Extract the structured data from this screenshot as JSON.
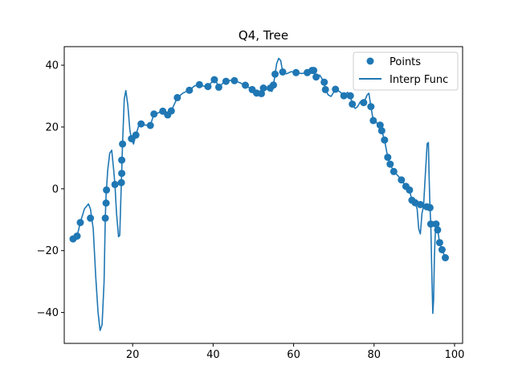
{
  "chart_data": {
    "type": "scatter",
    "title": "Q4, Tree",
    "xlabel": "",
    "ylabel": "",
    "xlim": [
      3,
      102
    ],
    "ylim": [
      -50,
      46
    ],
    "xticks": [
      20,
      40,
      60,
      80,
      100
    ],
    "yticks": [
      -40,
      -20,
      0,
      20,
      40
    ],
    "grid": false,
    "legend_position": "top-right",
    "colors": {
      "series": "#1f77b4",
      "axes": "#000000",
      "background": "#ffffff"
    },
    "series": [
      {
        "name": "Points",
        "kind": "scatter",
        "points": [
          [
            5.2,
            -16.2
          ],
          [
            6.2,
            -15.3
          ],
          [
            7.0,
            -10.9
          ],
          [
            9.5,
            -9.5
          ],
          [
            13.2,
            -9.5
          ],
          [
            13.4,
            -4.6
          ],
          [
            13.5,
            -0.4
          ],
          [
            15.6,
            1.4
          ],
          [
            17.2,
            2.0
          ],
          [
            17.3,
            5.0
          ],
          [
            17.3,
            9.3
          ],
          [
            17.5,
            14.5
          ],
          [
            19.7,
            16.2
          ],
          [
            20.8,
            17.4
          ],
          [
            22.1,
            21.0
          ],
          [
            24.4,
            20.5
          ],
          [
            25.3,
            24.2
          ],
          [
            27.5,
            25.1
          ],
          [
            28.7,
            23.9
          ],
          [
            29.6,
            25.2
          ],
          [
            31.1,
            29.5
          ],
          [
            34.1,
            31.9
          ],
          [
            36.6,
            33.7
          ],
          [
            38.7,
            33.1
          ],
          [
            40.3,
            35.3
          ],
          [
            41.4,
            32.9
          ],
          [
            43.2,
            34.8
          ],
          [
            45.3,
            35.0
          ],
          [
            48.0,
            33.5
          ],
          [
            49.7,
            32.1
          ],
          [
            50.8,
            31.0
          ],
          [
            52.0,
            30.8
          ],
          [
            52.5,
            32.6
          ],
          [
            54.2,
            32.6
          ],
          [
            55.0,
            33.6
          ],
          [
            55.4,
            37.1
          ],
          [
            57.3,
            37.8
          ],
          [
            60.6,
            37.6
          ],
          [
            63.4,
            37.6
          ],
          [
            64.6,
            38.3
          ],
          [
            65.0,
            38.3
          ],
          [
            65.6,
            36.2
          ],
          [
            67.6,
            34.5
          ],
          [
            67.9,
            32.1
          ],
          [
            70.4,
            32.2
          ],
          [
            72.5,
            30.1
          ],
          [
            74.1,
            30.1
          ],
          [
            74.6,
            27.4
          ],
          [
            77.4,
            27.9
          ],
          [
            79.2,
            26.6
          ],
          [
            79.8,
            22.1
          ],
          [
            81.5,
            20.6
          ],
          [
            81.9,
            18.8
          ],
          [
            82.6,
            15.8
          ],
          [
            83.4,
            10.2
          ],
          [
            84.0,
            8.0
          ],
          [
            84.9,
            5.6
          ],
          [
            86.8,
            2.9
          ],
          [
            87.9,
            0.8
          ],
          [
            88.8,
            -0.4
          ],
          [
            89.4,
            -3.7
          ],
          [
            90.2,
            -4.5
          ],
          [
            91.5,
            -5.1
          ],
          [
            93.1,
            -5.8
          ],
          [
            93.9,
            -6.1
          ],
          [
            94.1,
            -11.4
          ],
          [
            95.4,
            -11.4
          ],
          [
            95.8,
            -13.3
          ],
          [
            96.3,
            -17.4
          ],
          [
            96.9,
            -19.7
          ],
          [
            97.7,
            -22.3
          ]
        ]
      },
      {
        "name": "Interp Func",
        "kind": "line",
        "points": [
          [
            5.2,
            -16.2
          ],
          [
            6.2,
            -15.3
          ],
          [
            7.0,
            -10.9
          ],
          [
            8.0,
            -6.5
          ],
          [
            9.0,
            -4.9
          ],
          [
            9.5,
            -6.5
          ],
          [
            10.2,
            -13
          ],
          [
            10.8,
            -28
          ],
          [
            11.4,
            -40
          ],
          [
            11.9,
            -45.8
          ],
          [
            12.4,
            -44
          ],
          [
            12.9,
            -30
          ],
          [
            13.2,
            -9.5
          ],
          [
            13.4,
            -2
          ],
          [
            13.8,
            6
          ],
          [
            14.3,
            11.5
          ],
          [
            14.8,
            12.5
          ],
          [
            15.3,
            6
          ],
          [
            15.6,
            1.4
          ],
          [
            16.0,
            -8
          ],
          [
            16.5,
            -15.5
          ],
          [
            16.8,
            -15
          ],
          [
            17.2,
            2.0
          ],
          [
            17.5,
            14.5
          ],
          [
            17.9,
            29
          ],
          [
            18.3,
            31.8
          ],
          [
            18.8,
            27
          ],
          [
            19.3,
            19
          ],
          [
            19.7,
            16.2
          ],
          [
            20.2,
            14.5
          ],
          [
            20.8,
            17.4
          ],
          [
            21.5,
            20.4
          ],
          [
            22.1,
            21.0
          ],
          [
            23.2,
            20.6
          ],
          [
            24.4,
            20.5
          ],
          [
            25.3,
            24.2
          ],
          [
            26.4,
            24.6
          ],
          [
            27.5,
            25.1
          ],
          [
            28.7,
            23.9
          ],
          [
            29.6,
            25.2
          ],
          [
            31.1,
            29.5
          ],
          [
            32.5,
            31
          ],
          [
            34.1,
            31.9
          ],
          [
            35.4,
            33.3
          ],
          [
            36.6,
            33.7
          ],
          [
            37.7,
            33.2
          ],
          [
            38.7,
            33.1
          ],
          [
            39.5,
            34.3
          ],
          [
            40.3,
            35.3
          ],
          [
            40.9,
            34.3
          ],
          [
            41.4,
            32.9
          ],
          [
            42.3,
            34
          ],
          [
            43.2,
            34.8
          ],
          [
            44.3,
            35.1
          ],
          [
            45.3,
            35.0
          ],
          [
            46.7,
            34.3
          ],
          [
            48.0,
            33.5
          ],
          [
            49.7,
            32.1
          ],
          [
            50.8,
            31.0
          ],
          [
            51.4,
            30.2
          ],
          [
            52.0,
            30.8
          ],
          [
            52.5,
            32.6
          ],
          [
            53.4,
            32.2
          ],
          [
            54.2,
            32.6
          ],
          [
            54.6,
            31.5
          ],
          [
            55.0,
            33.6
          ],
          [
            55.4,
            37.1
          ],
          [
            55.8,
            40.5
          ],
          [
            56.3,
            42.2
          ],
          [
            56.8,
            41.5
          ],
          [
            57.3,
            37.8
          ],
          [
            58.2,
            37.2
          ],
          [
            59.4,
            37.9
          ],
          [
            60.6,
            37.6
          ],
          [
            62.0,
            37.3
          ],
          [
            63.4,
            37.6
          ],
          [
            64.6,
            38.3
          ],
          [
            65.0,
            38.3
          ],
          [
            65.6,
            36.2
          ],
          [
            66.5,
            36.8
          ],
          [
            67.6,
            34.5
          ],
          [
            67.9,
            32.1
          ],
          [
            68.6,
            30.4
          ],
          [
            69.3,
            29.9
          ],
          [
            70.4,
            32.2
          ],
          [
            71.5,
            31.4
          ],
          [
            72.5,
            30.1
          ],
          [
            73.4,
            31.2
          ],
          [
            74.1,
            30.1
          ],
          [
            74.6,
            27.4
          ],
          [
            75.3,
            26
          ],
          [
            75.9,
            26.6
          ],
          [
            76.6,
            28.2
          ],
          [
            77.4,
            27.9
          ],
          [
            78.3,
            30.4
          ],
          [
            78.7,
            30.9
          ],
          [
            79.2,
            26.6
          ],
          [
            79.8,
            22.1
          ],
          [
            80.6,
            21.4
          ],
          [
            81.5,
            20.6
          ],
          [
            81.9,
            18.8
          ],
          [
            82.6,
            15.8
          ],
          [
            83.4,
            10.2
          ],
          [
            84.0,
            8.0
          ],
          [
            84.9,
            5.6
          ],
          [
            85.9,
            4.3
          ],
          [
            86.8,
            2.9
          ],
          [
            87.9,
            0.8
          ],
          [
            88.8,
            -0.4
          ],
          [
            89.4,
            -3.7
          ],
          [
            90.2,
            -4.5
          ],
          [
            90.7,
            -6.5
          ],
          [
            91.1,
            -13
          ],
          [
            91.5,
            -14.6
          ],
          [
            91.9,
            -8
          ],
          [
            92.3,
            -5.5
          ],
          [
            92.8,
            6
          ],
          [
            93.2,
            14.6
          ],
          [
            93.5,
            15
          ],
          [
            93.7,
            3
          ],
          [
            93.9,
            -6.1
          ],
          [
            94.1,
            -11.4
          ],
          [
            94.4,
            -30
          ],
          [
            94.6,
            -40.3
          ],
          [
            94.8,
            -36
          ],
          [
            95.0,
            -22
          ],
          [
            95.2,
            -15
          ],
          [
            95.4,
            -11.4
          ],
          [
            95.8,
            -13.3
          ],
          [
            96.3,
            -17.4
          ],
          [
            96.9,
            -19.7
          ],
          [
            97.7,
            -22.3
          ]
        ]
      }
    ]
  }
}
